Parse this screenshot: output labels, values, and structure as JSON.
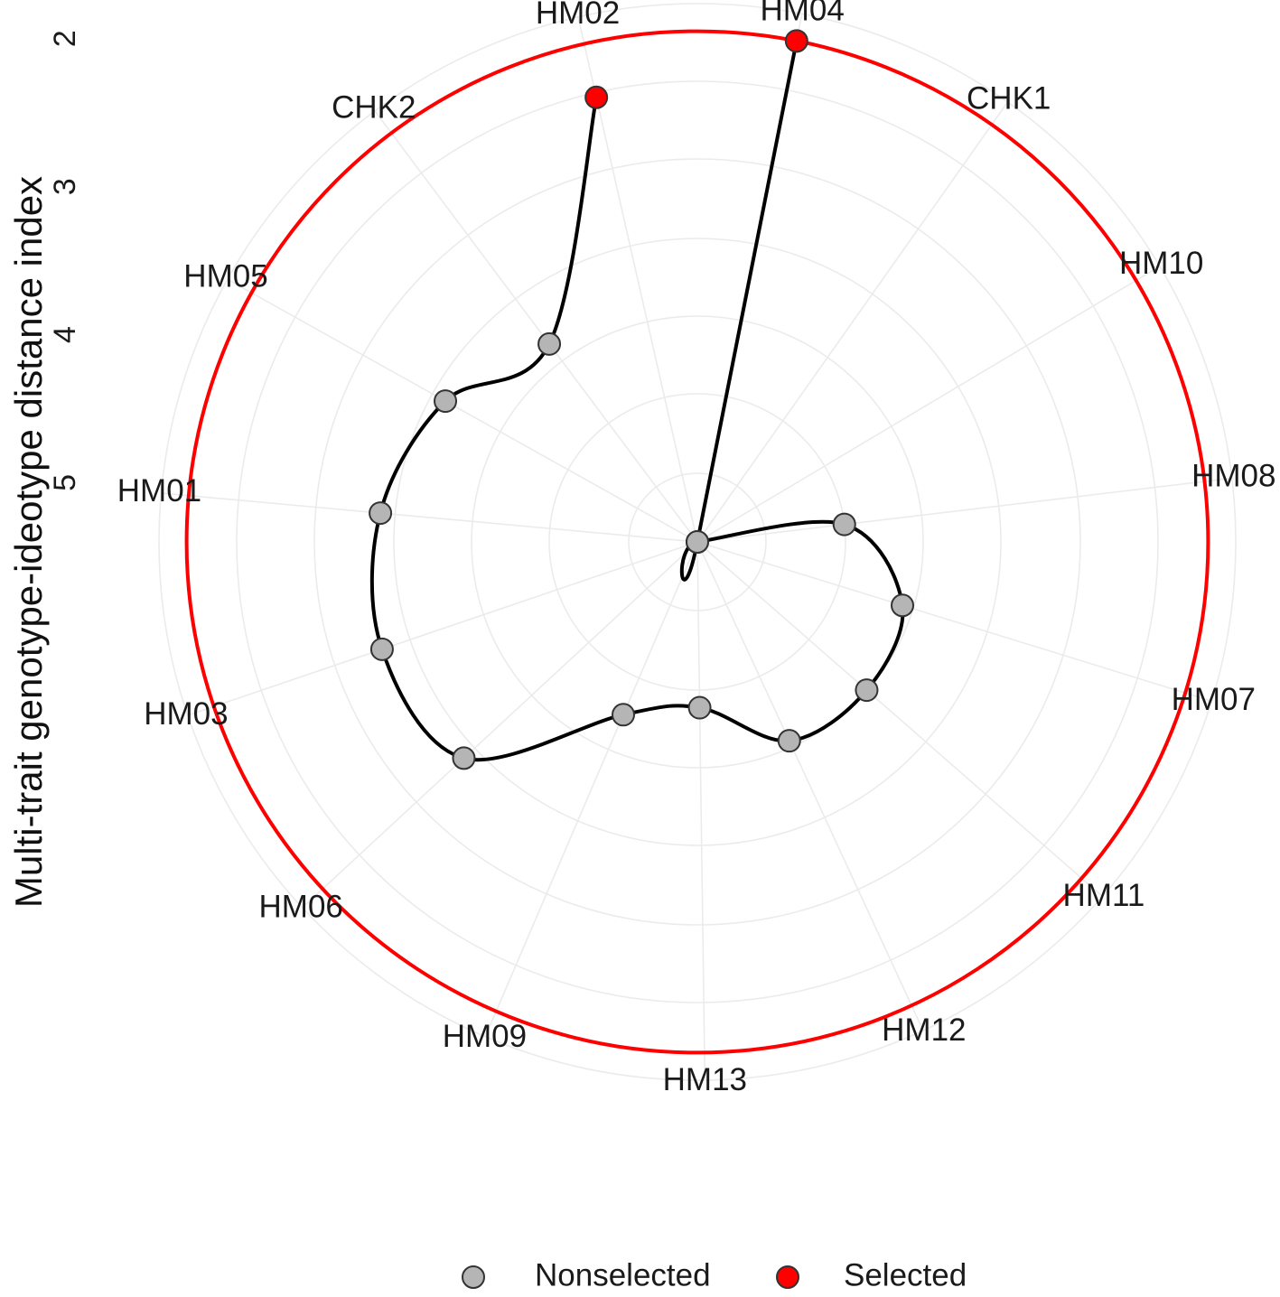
{
  "chart_data": {
    "type": "radar",
    "ylabel": "Multi-trait genotype-ideotype distance index",
    "radial_axis": {
      "reversed": true,
      "ticks": [
        2,
        3,
        4,
        5
      ],
      "range": [
        1.8,
        5.4
      ]
    },
    "categories": [
      "HM04",
      "CHK1",
      "HM10",
      "HM08",
      "HM07",
      "HM11",
      "HM12",
      "HM13",
      "HM09",
      "HM06",
      "HM03",
      "HM01",
      "HM05",
      "CHK2",
      "HM02"
    ],
    "series": [
      {
        "values": [
          1.95,
          5.4,
          5.4,
          4.4,
          3.95,
          3.88,
          3.92,
          4.28,
          4.13,
          3.25,
          3.15,
          3.25,
          3.45,
          3.73,
          2.32
        ]
      }
    ],
    "classification": [
      "Selected",
      "Nonselected",
      "Nonselected",
      "Nonselected",
      "Nonselected",
      "Nonselected",
      "Nonselected",
      "Nonselected",
      "Nonselected",
      "Nonselected",
      "Nonselected",
      "Nonselected",
      "Nonselected",
      "Nonselected",
      "Selected"
    ],
    "cutoff_value": 1.95,
    "legend": {
      "position": "bottom",
      "entries": [
        {
          "label": "Nonselected",
          "color": "#b5b5b5"
        },
        {
          "label": "Selected",
          "color": "#ff0000"
        }
      ]
    },
    "colors": {
      "line": "#000000",
      "cutoff_circle": "#ff0000",
      "grid": "#ebebeb"
    },
    "grid": true
  }
}
